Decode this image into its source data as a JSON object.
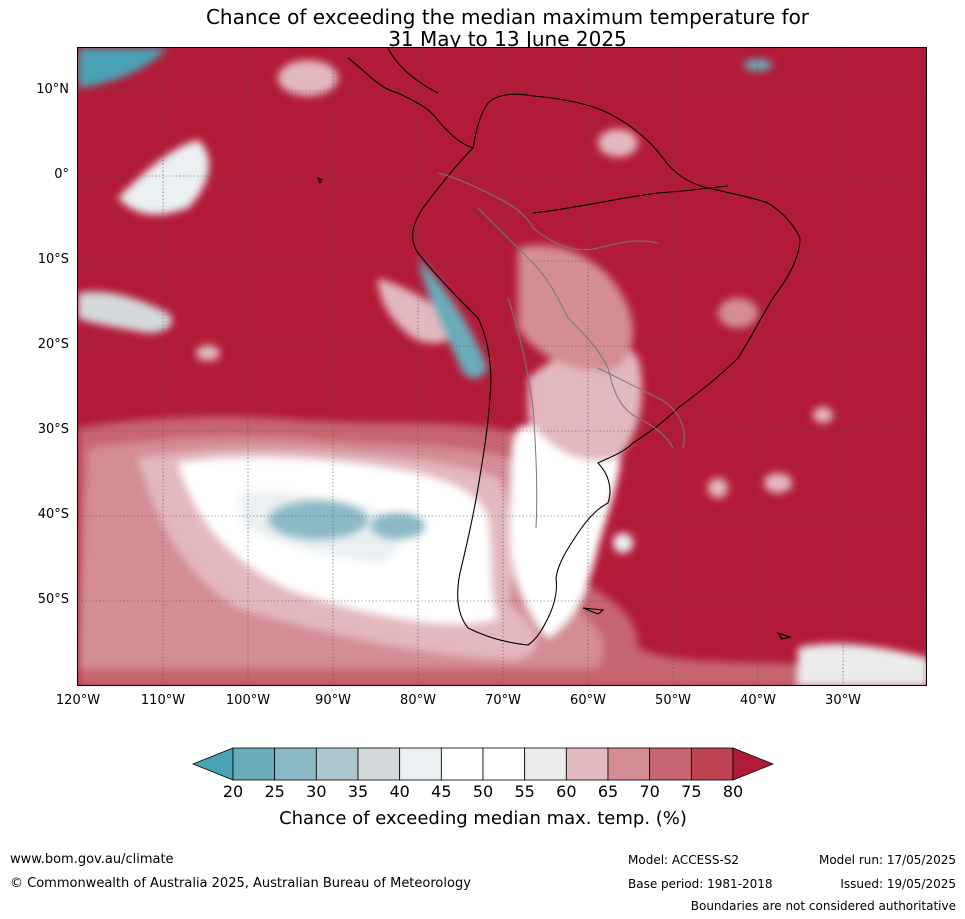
{
  "title": {
    "line1": "Chance of exceeding the median maximum temperature for",
    "line2": "31 May to 13 June 2025"
  },
  "map": {
    "latitude_labels": [
      "10°N",
      "0°",
      "10°S",
      "20°S",
      "30°S",
      "40°S",
      "50°S"
    ],
    "longitude_labels": [
      "120°W",
      "110°W",
      "100°W",
      "90°W",
      "80°W",
      "70°W",
      "60°W",
      "50°W",
      "40°W",
      "30°W"
    ],
    "dominant_color": "#b21b38"
  },
  "colorbar": {
    "ticks": [
      "20",
      "25",
      "30",
      "35",
      "40",
      "45",
      "50",
      "55",
      "60",
      "65",
      "70",
      "75",
      "80"
    ],
    "colors": [
      "#4aa3b4",
      "#6aacba",
      "#8bbac6",
      "#adc7cf",
      "#d4d9db",
      "#ebf0f2",
      "#ffffff",
      "#ffffff",
      "#ececec",
      "#e3b8be",
      "#d48c95",
      "#c76570",
      "#bd4352",
      "#b21b38"
    ],
    "label": "Chance of exceeding median max. temp. (%)"
  },
  "footer": {
    "website": "www.bom.gov.au/climate",
    "copyright": "© Commonwealth of Australia 2025, Australian Bureau of Meteorology",
    "model": "Model: ACCESS-S2",
    "base_period": "Base period: 1981-2018",
    "model_run": "Model run: 17/05/2025",
    "issued": "Issued: 19/05/2025",
    "disclaimer": "Boundaries are not considered authoritative"
  }
}
